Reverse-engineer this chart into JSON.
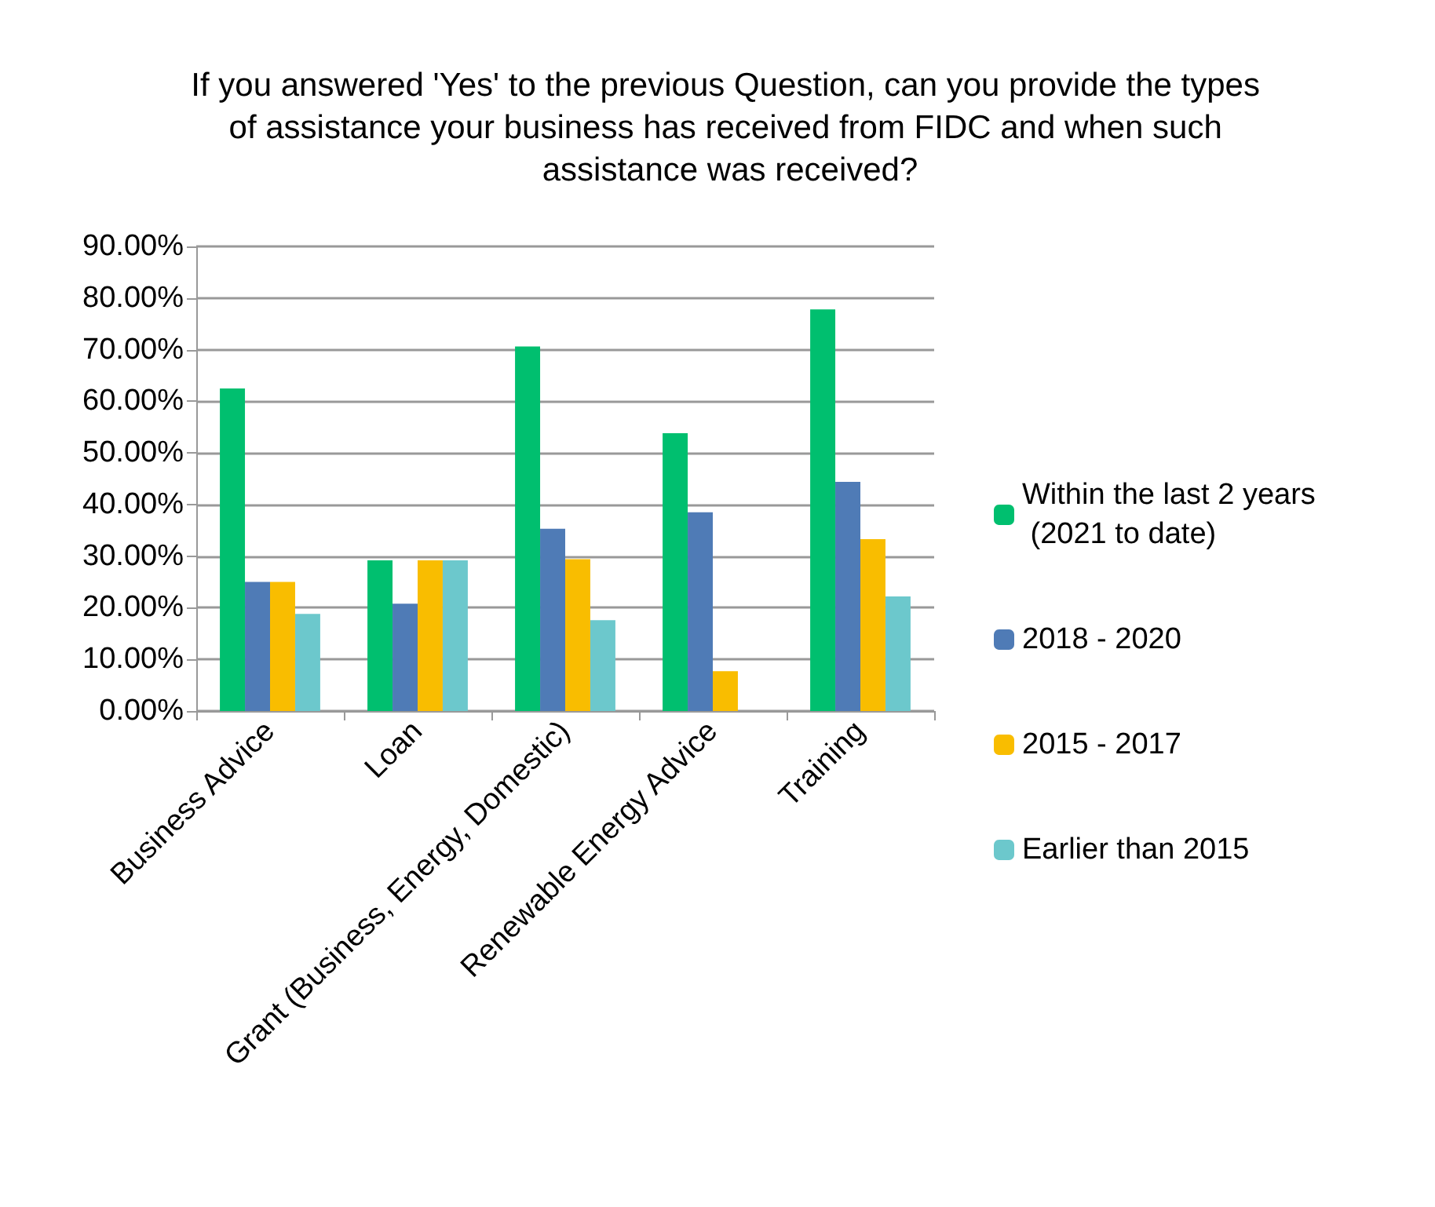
{
  "chart_data": {
    "type": "bar",
    "title": "If you answered 'Yes' to the previous Question, can you provide the types of assistance your business has received from FIDC and when such assistance was received?",
    "categories": [
      "Business Advice",
      "Loan",
      "Grant (Business, Energy, Domestic)",
      "Renewable Energy Advice",
      "Training"
    ],
    "series": [
      {
        "name": "Within the last 2 years (2021 to date)",
        "color": "#00bf6f",
        "values": [
          62.5,
          29.2,
          70.6,
          53.8,
          77.8
        ]
      },
      {
        "name": "2018 - 2020",
        "color": "#4f7bb6",
        "values": [
          25,
          20.8,
          35.3,
          38.5,
          44.4
        ]
      },
      {
        "name": "2015 - 2017",
        "color": "#f9bd00",
        "values": [
          25,
          29.2,
          29.4,
          7.7,
          33.3
        ]
      },
      {
        "name": "Earlier than 2015",
        "color": "#6cc8cc",
        "values": [
          18.8,
          29.2,
          17.6,
          0,
          22.2
        ]
      }
    ],
    "ylim": [
      0,
      90
    ],
    "yticks": [
      {
        "value": 0,
        "label": "0.00%"
      },
      {
        "value": 10,
        "label": "10.00%"
      },
      {
        "value": 20,
        "label": "20.00%"
      },
      {
        "value": 30,
        "label": "30.00%"
      },
      {
        "value": 40,
        "label": "40.00%"
      },
      {
        "value": 50,
        "label": "50.00%"
      },
      {
        "value": 60,
        "label": "60.00%"
      },
      {
        "value": 70,
        "label": "70.00%"
      },
      {
        "value": 80,
        "label": "80.00%"
      },
      {
        "value": 90,
        "label": "90.00%"
      }
    ],
    "grid": "y",
    "legend": "right"
  }
}
